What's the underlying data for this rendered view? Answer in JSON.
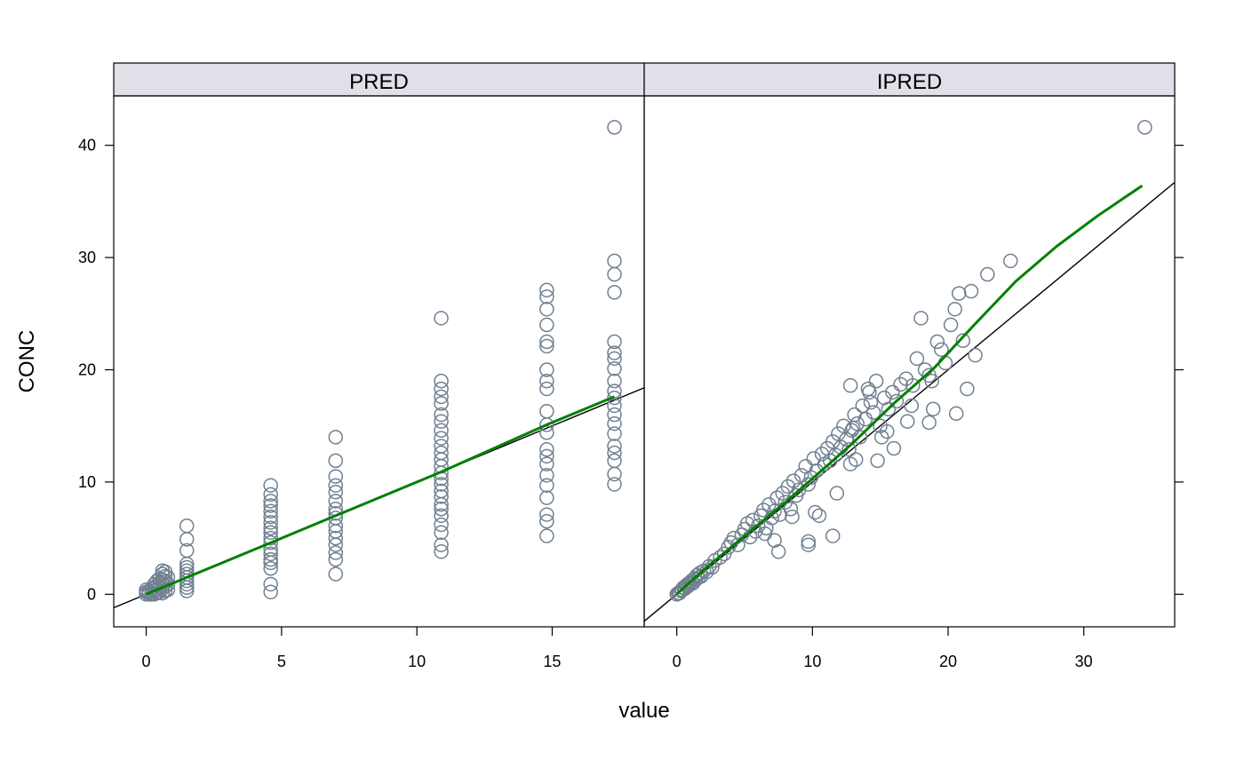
{
  "chart_data": {
    "type": "scatter",
    "xlabel": "value",
    "ylabel": "CONC",
    "ylim": [
      -2.9,
      44.4
    ],
    "yticks": [
      0,
      10,
      20,
      30,
      40
    ],
    "colors": {
      "points": "#708090",
      "smooth": "#008000",
      "identity": "#000000",
      "strip": "#DFE0E8"
    },
    "panels": [
      {
        "strip": "PRED",
        "xlim": [
          -1.2,
          18.4
        ],
        "xticks": [
          0,
          5,
          10,
          15
        ],
        "smooth": [
          [
            0.0,
            0.0
          ],
          [
            1.5,
            1.5
          ],
          [
            4.6,
            4.6
          ],
          [
            7.0,
            7.0
          ],
          [
            10.9,
            10.9
          ],
          [
            14.8,
            15.1
          ],
          [
            17.3,
            17.6
          ]
        ],
        "points": [
          [
            0.0,
            0.0
          ],
          [
            0.0,
            0.2
          ],
          [
            0.0,
            0.4
          ],
          [
            0.1,
            0.0
          ],
          [
            0.1,
            0.2
          ],
          [
            0.1,
            0.3
          ],
          [
            0.2,
            0.0
          ],
          [
            0.2,
            0.1
          ],
          [
            0.2,
            0.5
          ],
          [
            0.3,
            0.0
          ],
          [
            0.3,
            0.3
          ],
          [
            0.3,
            0.6
          ],
          [
            0.3,
            0.9
          ],
          [
            0.4,
            0.1
          ],
          [
            0.4,
            0.4
          ],
          [
            0.4,
            0.8
          ],
          [
            0.4,
            1.2
          ],
          [
            0.5,
            0.2
          ],
          [
            0.5,
            0.6
          ],
          [
            0.5,
            1.0
          ],
          [
            0.5,
            1.4
          ],
          [
            0.6,
            0.1
          ],
          [
            0.6,
            0.5
          ],
          [
            0.6,
            0.9
          ],
          [
            0.6,
            1.3
          ],
          [
            0.6,
            1.8
          ],
          [
            0.6,
            2.1
          ],
          [
            0.7,
            0.3
          ],
          [
            0.7,
            0.7
          ],
          [
            0.7,
            1.1
          ],
          [
            0.7,
            1.6
          ],
          [
            0.7,
            2.0
          ],
          [
            0.8,
            0.4
          ],
          [
            0.8,
            0.9
          ],
          [
            0.8,
            1.5
          ],
          [
            1.5,
            0.3
          ],
          [
            1.5,
            0.6
          ],
          [
            1.5,
            0.9
          ],
          [
            1.5,
            1.2
          ],
          [
            1.5,
            1.5
          ],
          [
            1.5,
            1.8
          ],
          [
            1.5,
            2.1
          ],
          [
            1.5,
            2.4
          ],
          [
            1.5,
            2.7
          ],
          [
            1.5,
            3.9
          ],
          [
            1.5,
            4.9
          ],
          [
            1.5,
            6.1
          ],
          [
            4.6,
            0.2
          ],
          [
            4.6,
            0.9
          ],
          [
            4.6,
            2.3
          ],
          [
            4.6,
            2.8
          ],
          [
            4.6,
            3.1
          ],
          [
            4.6,
            3.6
          ],
          [
            4.6,
            4.0
          ],
          [
            4.6,
            4.6
          ],
          [
            4.6,
            5.0
          ],
          [
            4.6,
            5.5
          ],
          [
            4.6,
            5.9
          ],
          [
            4.6,
            6.4
          ],
          [
            4.6,
            6.9
          ],
          [
            4.6,
            7.4
          ],
          [
            4.6,
            7.9
          ],
          [
            4.6,
            8.3
          ],
          [
            4.6,
            8.9
          ],
          [
            4.6,
            9.7
          ],
          [
            7.0,
            1.8
          ],
          [
            7.0,
            3.1
          ],
          [
            7.0,
            3.7
          ],
          [
            7.0,
            4.4
          ],
          [
            7.0,
            5.0
          ],
          [
            7.0,
            5.6
          ],
          [
            7.0,
            6.1
          ],
          [
            7.0,
            6.8
          ],
          [
            7.0,
            7.2
          ],
          [
            7.0,
            7.6
          ],
          [
            7.0,
            8.3
          ],
          [
            7.0,
            9.1
          ],
          [
            7.0,
            9.7
          ],
          [
            7.0,
            10.5
          ],
          [
            7.0,
            11.9
          ],
          [
            7.0,
            14.0
          ],
          [
            10.9,
            3.8
          ],
          [
            10.9,
            4.4
          ],
          [
            10.9,
            5.5
          ],
          [
            10.9,
            6.2
          ],
          [
            10.9,
            7.0
          ],
          [
            10.9,
            7.6
          ],
          [
            10.9,
            8.0
          ],
          [
            10.9,
            8.7
          ],
          [
            10.9,
            9.2
          ],
          [
            10.9,
            9.8
          ],
          [
            10.9,
            10.3
          ],
          [
            10.9,
            10.8
          ],
          [
            10.9,
            11.4
          ],
          [
            10.9,
            12.0
          ],
          [
            10.9,
            12.6
          ],
          [
            10.9,
            13.2
          ],
          [
            10.9,
            13.9
          ],
          [
            10.9,
            14.6
          ],
          [
            10.9,
            15.4
          ],
          [
            10.9,
            16.0
          ],
          [
            10.9,
            17.0
          ],
          [
            10.9,
            17.6
          ],
          [
            10.9,
            18.3
          ],
          [
            10.9,
            19.0
          ],
          [
            10.9,
            24.6
          ],
          [
            14.8,
            5.2
          ],
          [
            14.8,
            6.5
          ],
          [
            14.8,
            7.1
          ],
          [
            14.8,
            8.6
          ],
          [
            14.8,
            9.7
          ],
          [
            14.8,
            10.6
          ],
          [
            14.8,
            11.6
          ],
          [
            14.8,
            12.3
          ],
          [
            14.8,
            12.9
          ],
          [
            14.8,
            14.4
          ],
          [
            14.8,
            15.1
          ],
          [
            14.8,
            16.3
          ],
          [
            14.8,
            18.3
          ],
          [
            14.8,
            19.0
          ],
          [
            14.8,
            20.0
          ],
          [
            14.8,
            22.1
          ],
          [
            14.8,
            22.5
          ],
          [
            14.8,
            24.0
          ],
          [
            14.8,
            25.4
          ],
          [
            14.8,
            26.5
          ],
          [
            14.8,
            27.1
          ],
          [
            17.3,
            9.8
          ],
          [
            17.3,
            10.7
          ],
          [
            17.3,
            11.9
          ],
          [
            17.3,
            12.6
          ],
          [
            17.3,
            13.2
          ],
          [
            17.3,
            14.3
          ],
          [
            17.3,
            15.2
          ],
          [
            17.3,
            16.0
          ],
          [
            17.3,
            16.8
          ],
          [
            17.3,
            17.5
          ],
          [
            17.3,
            18.1
          ],
          [
            17.3,
            19.0
          ],
          [
            17.3,
            20.1
          ],
          [
            17.3,
            21.0
          ],
          [
            17.3,
            21.5
          ],
          [
            17.3,
            22.5
          ],
          [
            17.3,
            26.9
          ],
          [
            17.3,
            28.5
          ],
          [
            17.3,
            29.7
          ],
          [
            17.3,
            41.6
          ]
        ]
      },
      {
        "strip": "IPRED",
        "xlim": [
          -2.4,
          36.7
        ],
        "xticks": [
          0,
          10,
          20,
          30
        ],
        "smooth": [
          [
            0.0,
            0.0
          ],
          [
            2.0,
            2.2
          ],
          [
            5.0,
            5.2
          ],
          [
            8.0,
            8.2
          ],
          [
            10.0,
            10.3
          ],
          [
            13.0,
            13.5
          ],
          [
            16.0,
            17.0
          ],
          [
            19.0,
            20.2
          ],
          [
            22.0,
            24.1
          ],
          [
            25.0,
            27.9
          ],
          [
            28.0,
            31.0
          ],
          [
            31.0,
            33.7
          ],
          [
            34.3,
            36.4
          ]
        ],
        "points": [
          [
            0.0,
            0.0
          ],
          [
            0.1,
            0.1
          ],
          [
            0.2,
            0.1
          ],
          [
            0.3,
            0.3
          ],
          [
            0.4,
            0.4
          ],
          [
            0.5,
            0.6
          ],
          [
            0.6,
            0.5
          ],
          [
            0.7,
            0.8
          ],
          [
            0.8,
            0.7
          ],
          [
            0.9,
            1.0
          ],
          [
            1.0,
            0.9
          ],
          [
            1.1,
            1.2
          ],
          [
            1.2,
            1.0
          ],
          [
            1.3,
            1.4
          ],
          [
            1.4,
            1.3
          ],
          [
            1.5,
            1.7
          ],
          [
            1.6,
            1.5
          ],
          [
            1.7,
            1.9
          ],
          [
            1.8,
            1.6
          ],
          [
            2.0,
            2.1
          ],
          [
            2.2,
            2.0
          ],
          [
            2.4,
            2.5
          ],
          [
            2.6,
            2.4
          ],
          [
            2.8,
            3.0
          ],
          [
            3.2,
            3.3
          ],
          [
            3.5,
            3.6
          ],
          [
            3.8,
            4.2
          ],
          [
            4.0,
            4.6
          ],
          [
            4.2,
            5.0
          ],
          [
            4.5,
            4.4
          ],
          [
            4.8,
            5.3
          ],
          [
            5.0,
            5.8
          ],
          [
            5.2,
            6.3
          ],
          [
            5.4,
            5.1
          ],
          [
            5.6,
            6.6
          ],
          [
            5.8,
            5.6
          ],
          [
            6.0,
            6.1
          ],
          [
            6.2,
            7.0
          ],
          [
            6.4,
            7.5
          ],
          [
            6.6,
            5.9
          ],
          [
            6.8,
            8.0
          ],
          [
            7.0,
            6.8
          ],
          [
            7.2,
            7.4
          ],
          [
            7.4,
            8.6
          ],
          [
            7.6,
            7.1
          ],
          [
            7.8,
            9.0
          ],
          [
            8.0,
            8.2
          ],
          [
            8.2,
            9.6
          ],
          [
            8.4,
            7.6
          ],
          [
            8.6,
            10.1
          ],
          [
            8.8,
            8.8
          ],
          [
            9.0,
            9.3
          ],
          [
            9.2,
            10.6
          ],
          [
            9.5,
            11.4
          ],
          [
            9.7,
            9.8
          ],
          [
            9.9,
            10.4
          ],
          [
            10.1,
            12.1
          ],
          [
            10.3,
            11.0
          ],
          [
            10.5,
            7.0
          ],
          [
            10.7,
            12.5
          ],
          [
            10.9,
            11.6
          ],
          [
            11.1,
            13.0
          ],
          [
            11.3,
            11.9
          ],
          [
            11.5,
            13.6
          ],
          [
            11.7,
            12.4
          ],
          [
            11.9,
            14.3
          ],
          [
            12.1,
            13.1
          ],
          [
            12.3,
            15.0
          ],
          [
            12.5,
            13.8
          ],
          [
            12.7,
            12.9
          ],
          [
            12.9,
            14.6
          ],
          [
            13.1,
            16.0
          ],
          [
            13.3,
            15.2
          ],
          [
            13.5,
            14.0
          ],
          [
            13.7,
            16.8
          ],
          [
            13.9,
            15.6
          ],
          [
            14.1,
            18.3
          ],
          [
            14.3,
            17.1
          ],
          [
            14.5,
            16.2
          ],
          [
            14.7,
            19.0
          ],
          [
            15.0,
            15.0
          ],
          [
            15.3,
            17.5
          ],
          [
            15.6,
            16.5
          ],
          [
            15.9,
            18.0
          ],
          [
            16.2,
            17.2
          ],
          [
            16.5,
            18.7
          ],
          [
            16.9,
            19.2
          ],
          [
            17.3,
            16.8
          ],
          [
            17.7,
            21.0
          ],
          [
            18.0,
            24.6
          ],
          [
            18.3,
            20.0
          ],
          [
            18.6,
            19.5
          ],
          [
            18.9,
            16.5
          ],
          [
            19.2,
            22.5
          ],
          [
            19.5,
            21.8
          ],
          [
            19.8,
            20.6
          ],
          [
            20.2,
            24.0
          ],
          [
            20.5,
            25.4
          ],
          [
            20.8,
            26.8
          ],
          [
            21.1,
            22.6
          ],
          [
            21.4,
            18.3
          ],
          [
            21.7,
            27.0
          ],
          [
            22.0,
            21.3
          ],
          [
            22.9,
            28.5
          ],
          [
            24.6,
            29.7
          ],
          [
            34.5,
            41.6
          ],
          [
            7.5,
            3.8
          ],
          [
            9.7,
            4.4
          ],
          [
            9.7,
            4.7
          ],
          [
            11.5,
            5.2
          ],
          [
            7.2,
            4.8
          ],
          [
            6.5,
            5.4
          ],
          [
            8.5,
            6.9
          ],
          [
            10.2,
            7.3
          ],
          [
            11.8,
            9.0
          ],
          [
            12.8,
            11.6
          ],
          [
            13.2,
            12.0
          ],
          [
            14.8,
            11.9
          ],
          [
            15.5,
            14.5
          ],
          [
            16.0,
            13.0
          ],
          [
            17.0,
            15.4
          ],
          [
            18.6,
            15.3
          ],
          [
            20.6,
            16.1
          ],
          [
            12.8,
            18.6
          ],
          [
            14.2,
            18.0
          ],
          [
            13.0,
            14.8
          ],
          [
            15.1,
            14.0
          ],
          [
            17.4,
            18.6
          ],
          [
            18.8,
            19.0
          ]
        ]
      }
    ]
  }
}
